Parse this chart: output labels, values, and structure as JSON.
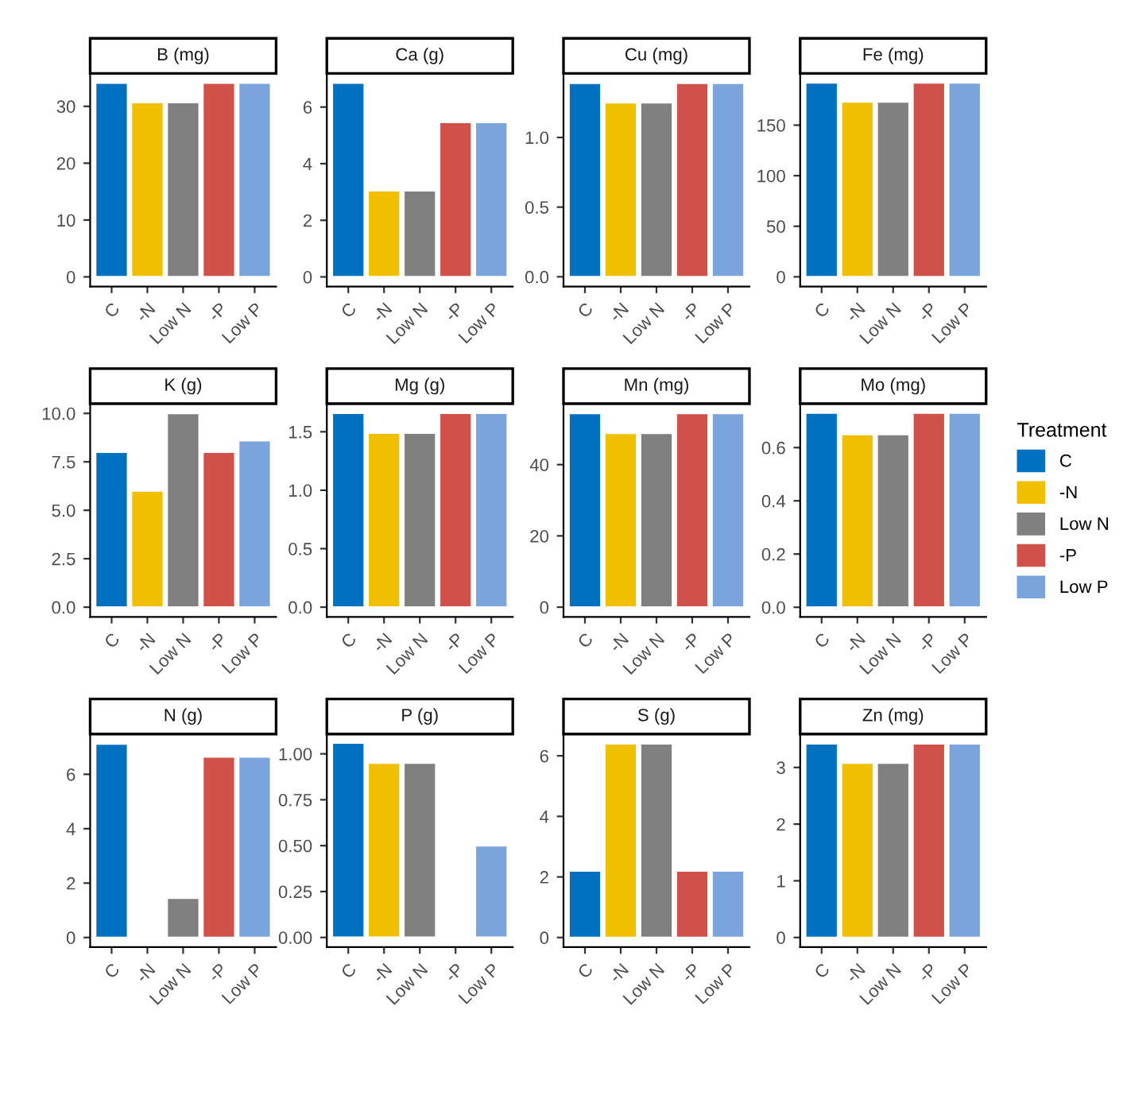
{
  "chart_data": [
    {
      "type": "bar",
      "title": "B (mg)",
      "categories": [
        "C",
        "-N",
        "Low N",
        "-P",
        "Low P"
      ],
      "values": [
        34.1,
        30.7,
        30.7,
        34.1,
        34.1
      ],
      "colors": [
        "#0070c0",
        "#f0c000",
        "#808080",
        "#d0504a",
        "#7ba3dc"
      ],
      "ylim": [
        -1.7,
        35.8
      ],
      "yticks": [
        0,
        10,
        20,
        30
      ],
      "grid": false,
      "legend": false
    },
    {
      "type": "bar",
      "title": "Ca (g)",
      "categories": [
        "C",
        "-N",
        "Low N",
        "-P",
        "Low P"
      ],
      "values": [
        6.85,
        3.05,
        3.05,
        5.46,
        5.46
      ],
      "colors": [
        "#0070c0",
        "#f0c000",
        "#808080",
        "#d0504a",
        "#7ba3dc"
      ],
      "ylim": [
        -0.34,
        7.19
      ],
      "yticks": [
        0,
        2,
        4,
        6
      ],
      "grid": false,
      "legend": false
    },
    {
      "type": "bar",
      "title": "Cu (mg)",
      "categories": [
        "C",
        "-N",
        "Low N",
        "-P",
        "Low P"
      ],
      "values": [
        1.39,
        1.25,
        1.25,
        1.39,
        1.39
      ],
      "colors": [
        "#0070c0",
        "#f0c000",
        "#808080",
        "#d0504a",
        "#7ba3dc"
      ],
      "ylim": [
        -0.07,
        1.46
      ],
      "yticks": [
        {
          "value": 0,
          "label": "0.0"
        },
        {
          "value": 0.5,
          "label": "0.5"
        },
        {
          "value": 1,
          "label": "1.0"
        }
      ],
      "grid": false,
      "legend": false
    },
    {
      "type": "bar",
      "title": "Fe (mg)",
      "categories": [
        "C",
        "-N",
        "Low N",
        "-P",
        "Low P"
      ],
      "values": [
        192,
        173,
        173,
        192,
        192
      ],
      "colors": [
        "#0070c0",
        "#f0c000",
        "#808080",
        "#d0504a",
        "#7ba3dc"
      ],
      "ylim": [
        -9.6,
        201.2
      ],
      "yticks": [
        0,
        50,
        100,
        150
      ],
      "grid": false,
      "legend": false
    },
    {
      "type": "bar",
      "title": "K (g)",
      "categories": [
        "C",
        "-N",
        "Low N",
        "-P",
        "Low P"
      ],
      "values": [
        8.0,
        6.0,
        10.0,
        8.0,
        8.6
      ],
      "colors": [
        "#0070c0",
        "#f0c000",
        "#808080",
        "#d0504a",
        "#7ba3dc"
      ],
      "ylim": [
        -0.5,
        10.5
      ],
      "yticks": [
        {
          "value": 0,
          "label": "0.0"
        },
        {
          "value": 2.5,
          "label": "2.5"
        },
        {
          "value": 5,
          "label": "5.0"
        },
        {
          "value": 7.5,
          "label": "7.5"
        },
        {
          "value": 10,
          "label": "10.0"
        }
      ],
      "grid": false,
      "legend": false
    },
    {
      "type": "bar",
      "title": "Mg (g)",
      "categories": [
        "C",
        "-N",
        "Low N",
        "-P",
        "Low P"
      ],
      "values": [
        1.66,
        1.49,
        1.49,
        1.66,
        1.66
      ],
      "colors": [
        "#0070c0",
        "#f0c000",
        "#808080",
        "#d0504a",
        "#7ba3dc"
      ],
      "ylim": [
        -0.083,
        1.74
      ],
      "yticks": [
        {
          "value": 0,
          "label": "0.0"
        },
        {
          "value": 0.5,
          "label": "0.5"
        },
        {
          "value": 1,
          "label": "1.0"
        },
        {
          "value": 1.5,
          "label": "1.5"
        }
      ],
      "grid": false,
      "legend": false
    },
    {
      "type": "bar",
      "title": "Mn (mg)",
      "categories": [
        "C",
        "-N",
        "Low N",
        "-P",
        "Low P"
      ],
      "values": [
        54.4,
        48.8,
        48.8,
        54.4,
        54.4
      ],
      "colors": [
        "#0070c0",
        "#f0c000",
        "#808080",
        "#d0504a",
        "#7ba3dc"
      ],
      "ylim": [
        -2.72,
        57.1
      ],
      "yticks": [
        0,
        20,
        40
      ],
      "grid": false,
      "legend": false
    },
    {
      "type": "bar",
      "title": "Mo (mg)",
      "categories": [
        "C",
        "-N",
        "Low N",
        "-P",
        "Low P"
      ],
      "values": [
        0.73,
        0.65,
        0.65,
        0.73,
        0.73
      ],
      "colors": [
        "#0070c0",
        "#f0c000",
        "#808080",
        "#d0504a",
        "#7ba3dc"
      ],
      "ylim": [
        -0.036,
        0.765
      ],
      "yticks": [
        {
          "value": 0,
          "label": "0.0"
        },
        {
          "value": 0.2,
          "label": "0.2"
        },
        {
          "value": 0.4,
          "label": "0.4"
        },
        {
          "value": 0.6,
          "label": "0.6"
        }
      ],
      "grid": false,
      "legend_title": "Treatment"
    },
    {
      "type": "bar",
      "title": "N (g)",
      "categories": [
        "C",
        "-N",
        "Low N",
        "-P",
        "Low P"
      ],
      "values": [
        7.12,
        null,
        1.45,
        6.64,
        6.64
      ],
      "colors": [
        "#0070c0",
        "#f0c000",
        "#808080",
        "#d0504a",
        "#7ba3dc"
      ],
      "ylim": [
        -0.356,
        7.48
      ],
      "yticks": [
        0,
        2,
        4,
        6
      ],
      "grid": false,
      "legend": false
    },
    {
      "type": "bar",
      "title": "P (g)",
      "categories": [
        "C",
        "-N",
        "Low N",
        "-P",
        "Low P"
      ],
      "values": [
        1.06,
        0.95,
        0.95,
        null,
        0.5
      ],
      "colors": [
        "#0070c0",
        "#f0c000",
        "#808080",
        "#d0504a",
        "#7ba3dc"
      ],
      "ylim": [
        -0.053,
        1.108
      ],
      "yticks": [
        {
          "value": 0,
          "label": "0.00"
        },
        {
          "value": 0.25,
          "label": "0.25"
        },
        {
          "value": 0.5,
          "label": "0.50"
        },
        {
          "value": 0.75,
          "label": "0.75"
        },
        {
          "value": 1,
          "label": "1.00"
        }
      ],
      "grid": false,
      "legend": false
    },
    {
      "type": "bar",
      "title": "S (g)",
      "categories": [
        "C",
        "-N",
        "Low N",
        "-P",
        "Low P"
      ],
      "values": [
        2.2,
        6.4,
        6.4,
        2.2,
        2.2
      ],
      "colors": [
        "#0070c0",
        "#f0c000",
        "#808080",
        "#d0504a",
        "#7ba3dc"
      ],
      "ylim": [
        -0.32,
        6.72
      ],
      "yticks": [
        0,
        2,
        4,
        6
      ],
      "grid": false,
      "legend": false
    },
    {
      "type": "bar",
      "title": "Zn (mg)",
      "categories": [
        "C",
        "-N",
        "Low N",
        "-P",
        "Low P"
      ],
      "values": [
        3.42,
        3.08,
        3.08,
        3.42,
        3.42
      ],
      "colors": [
        "#0070c0",
        "#f0c000",
        "#808080",
        "#d0504a",
        "#7ba3dc"
      ],
      "ylim": [
        -0.171,
        3.59
      ],
      "yticks": [
        0,
        1,
        2,
        3
      ],
      "grid": false,
      "legend": false
    }
  ]
}
